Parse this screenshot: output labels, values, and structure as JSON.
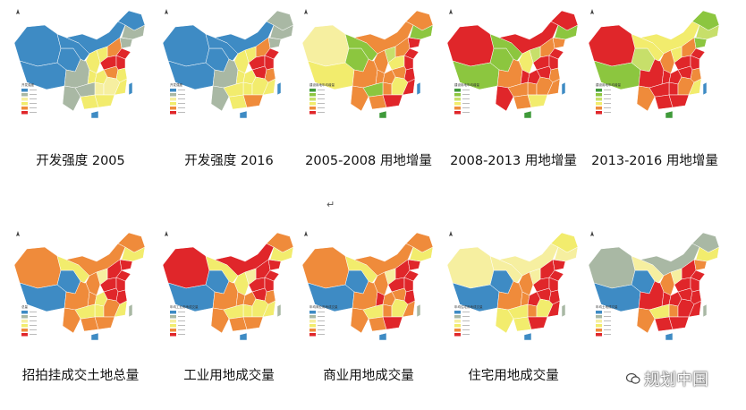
{
  "colors": {
    "blue": "#3e8bc4",
    "gray": "#a9b8a4",
    "yellow": "#f2ec6d",
    "light_yellow": "#f6efa0",
    "orange": "#ef8b3b",
    "red": "#e0262a",
    "green": "#8cc63f",
    "light_green": "#c7df6a",
    "dark_green": "#3f9a3a"
  },
  "panels": [
    {
      "caption": "开发强度 2005",
      "legend_title": "开发强度"
    },
    {
      "caption": "开发强度 2016",
      "legend_title": "开发强度"
    },
    {
      "caption": "2005-2008 用地增量",
      "legend_title": "建设用地年均增量"
    },
    {
      "caption": "2008-2013 用地增量",
      "legend_title": "建设用地年均增量"
    },
    {
      "caption": "2013-2016 用地增量",
      "legend_title": "建设用地年均增量"
    },
    {
      "caption": "招拍挂成交土地总量",
      "legend_title": "总量"
    },
    {
      "caption": "工业用地成交量",
      "legend_title": "年均工业用地成交量"
    },
    {
      "caption": "商业用地成交量",
      "legend_title": "年均商业用地成交量"
    },
    {
      "caption": "住宅用地成交量",
      "legend_title": "年均住宅用地成交量"
    },
    {
      "caption": "",
      "legend_title": "年均土地成交量"
    }
  ],
  "watermark": "规划中国",
  "return_mark": "↵"
}
